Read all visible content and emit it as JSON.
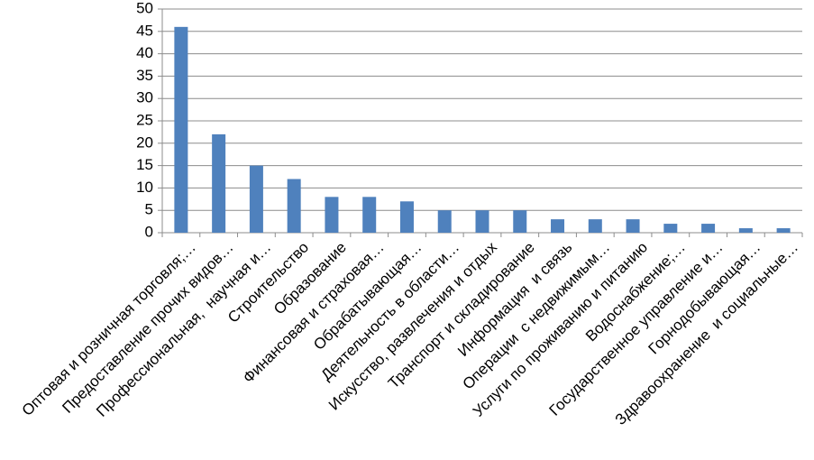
{
  "chart_data": {
    "type": "bar",
    "categories": [
      "Оптовая и розничная торговля;…",
      "Предоставление прочих видов…",
      "Профессиональная,  научная и…",
      "Строительство",
      "Образование",
      "Финансовая и страховая…",
      "Обрабатывающая…",
      "Деятельность в области…",
      "Искусство, развлечения и отдых",
      "Транспорт и складирование",
      "Информация  и связь",
      "Операции  с недвижимым…",
      "Услуги по проживанию и питанию",
      "Водоснабжение;…",
      "Государственное управление и…",
      "Горнодобывающая…",
      "Здравоохранение  и социальные…"
    ],
    "values": [
      46,
      22,
      15,
      12,
      8,
      8,
      7,
      5,
      5,
      5,
      3,
      3,
      3,
      2,
      2,
      1,
      1
    ],
    "color": "#4f81bd",
    "ylim": [
      0,
      50
    ],
    "yticks": [
      0,
      5,
      10,
      15,
      20,
      25,
      30,
      35,
      40,
      45,
      50
    ],
    "grid": true
  }
}
